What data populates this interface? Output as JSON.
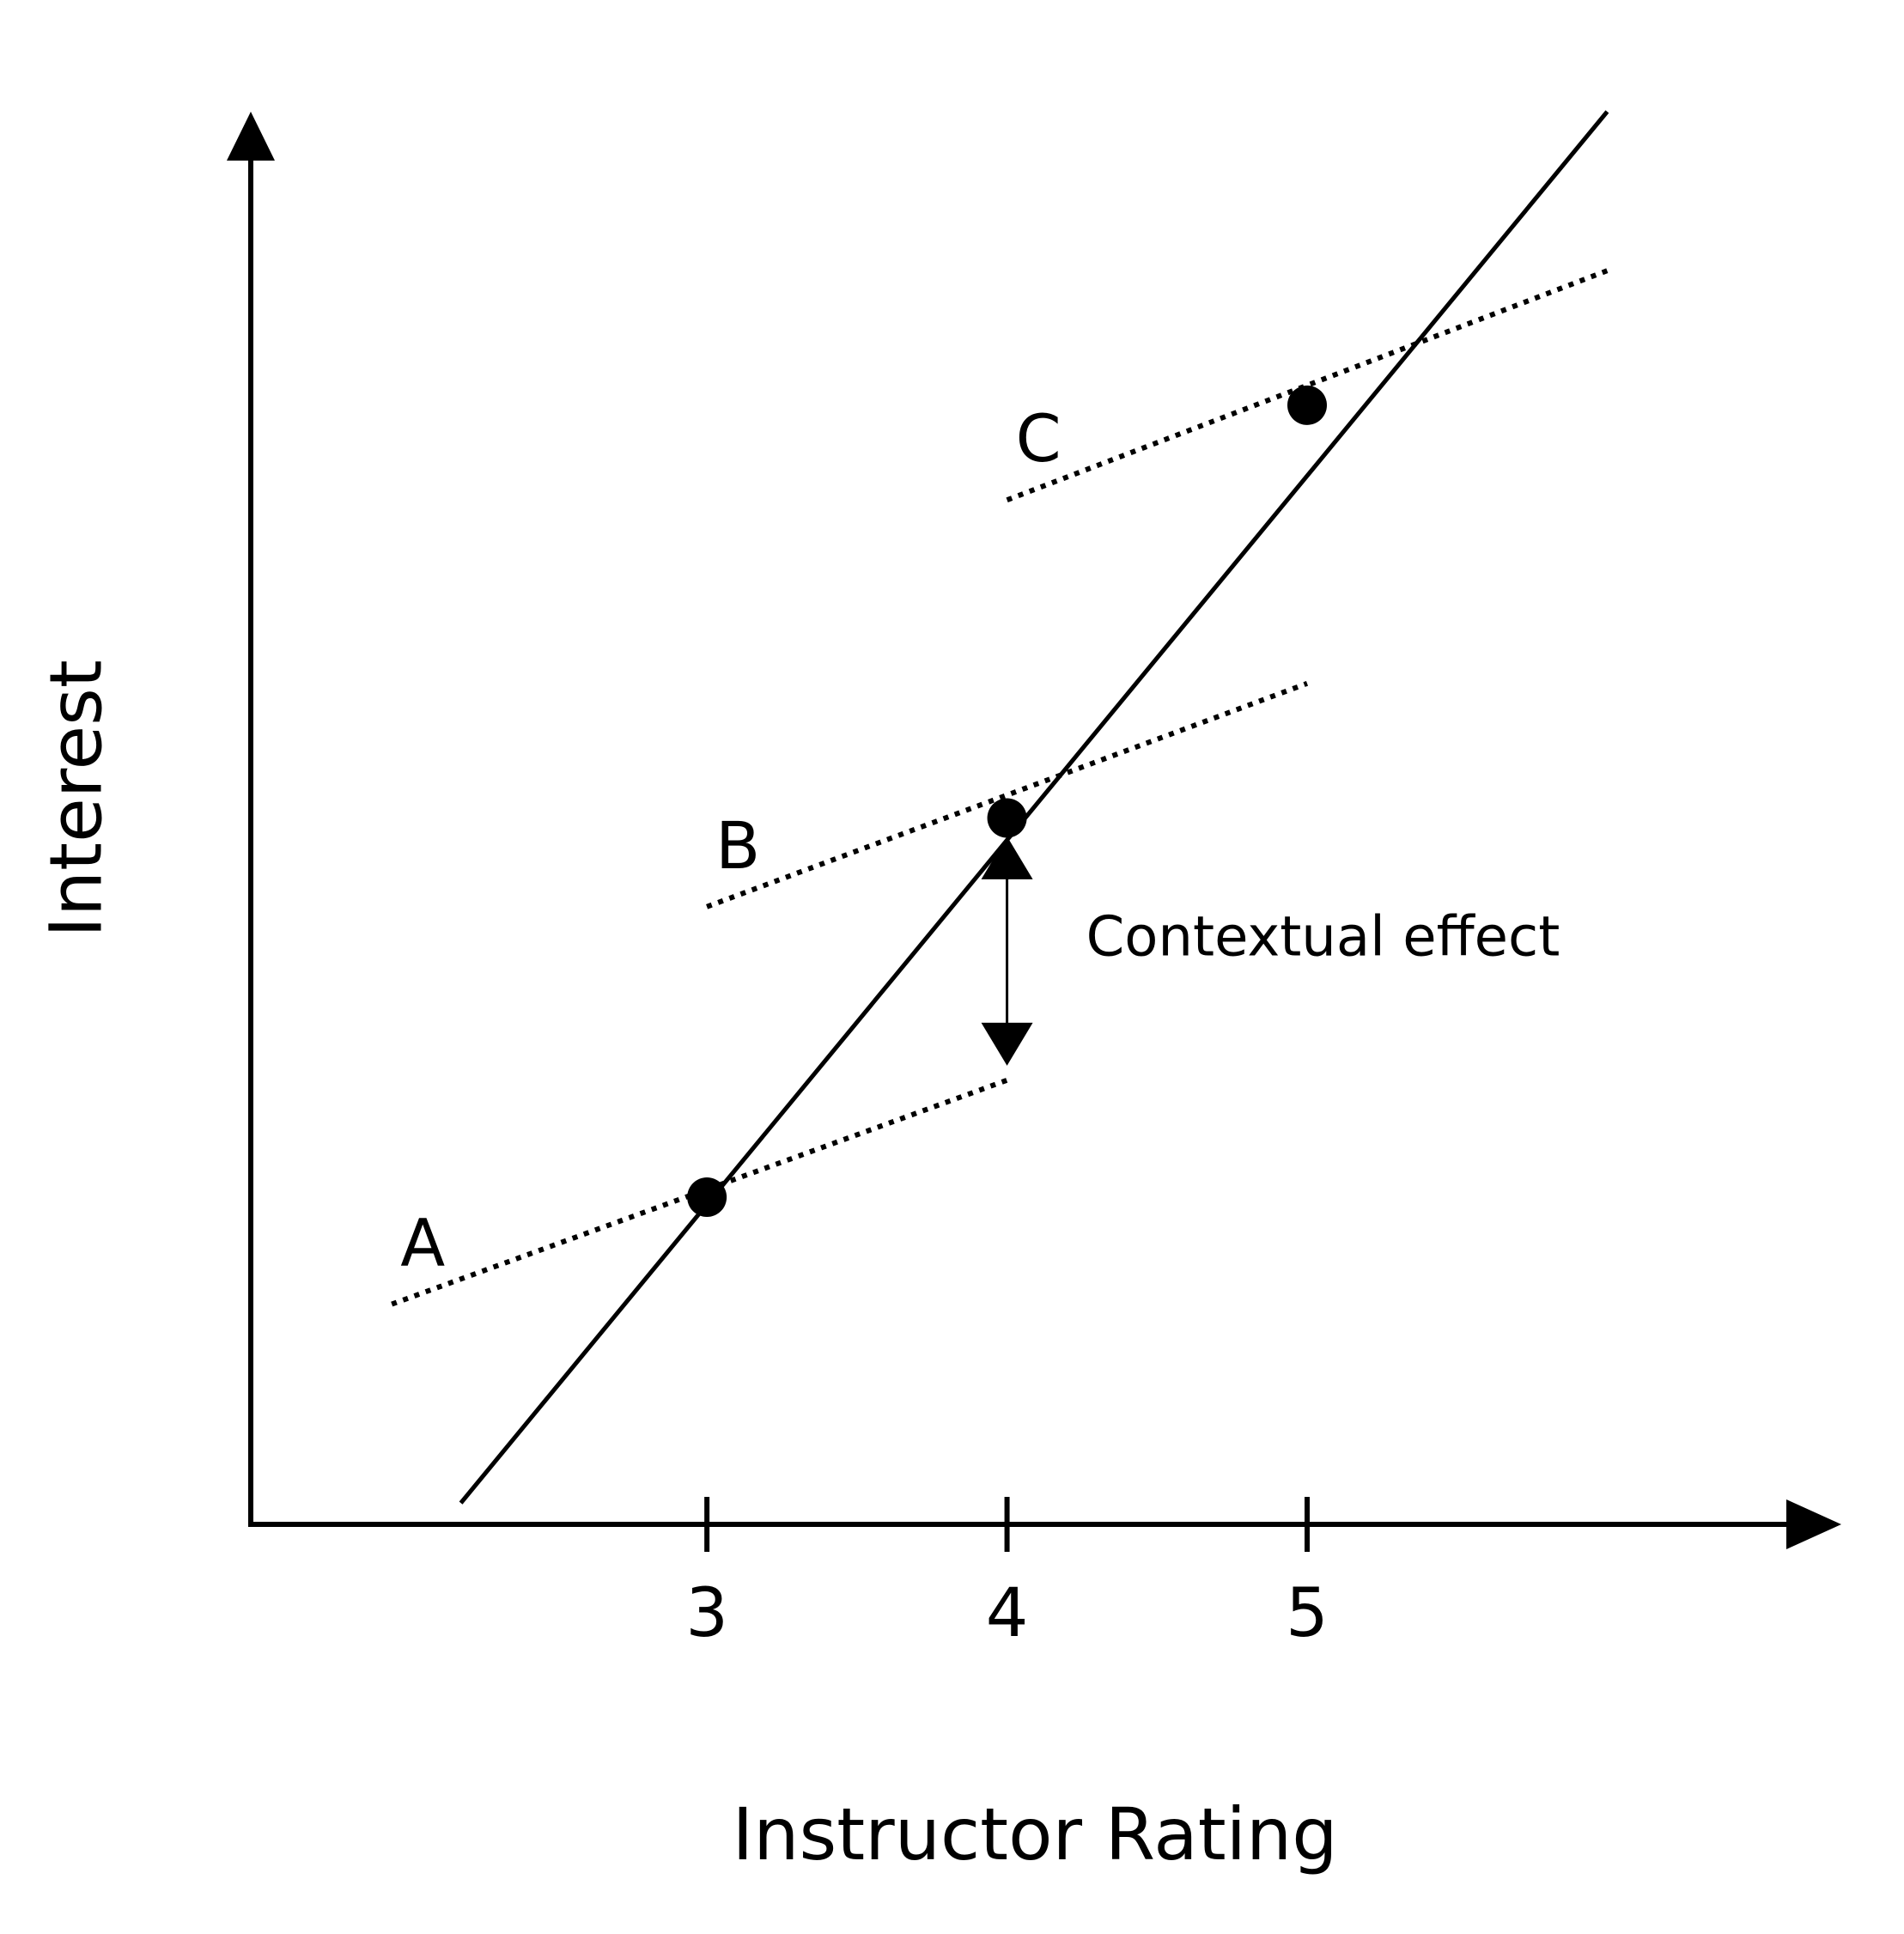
{
  "chart_data": {
    "type": "line",
    "title": "",
    "xlabel": "Instructor Rating",
    "ylabel": "Interest",
    "x_ticks": [
      3,
      4,
      5
    ],
    "xlim": [
      1.48,
      6.78
    ],
    "ylim": [
      0,
      4.62
    ],
    "grid": false,
    "legend": "none",
    "series": [
      {
        "name": "",
        "style": "solid",
        "x": [
          2.18,
          6.0
        ],
        "y": [
          0.07,
          4.62
        ]
      },
      {
        "name": "A",
        "style": "dotted",
        "x": [
          1.95,
          4.02
        ],
        "y": [
          0.72,
          1.46
        ]
      },
      {
        "name": "B",
        "style": "dotted",
        "x": [
          3.0,
          5.0
        ],
        "y": [
          2.02,
          2.75
        ]
      },
      {
        "name": "C",
        "style": "dotted",
        "x": [
          4.0,
          6.0
        ],
        "y": [
          3.35,
          4.1
        ]
      }
    ],
    "points": [
      {
        "x": 3,
        "y": 1.07
      },
      {
        "x": 4,
        "y": 2.31
      },
      {
        "x": 5,
        "y": 3.66
      }
    ],
    "annotations": [
      {
        "text": "Contextual effect",
        "x": 4,
        "y_from": 1.5,
        "y_to": 2.25
      }
    ]
  },
  "colors": {
    "ink": "#000000",
    "background": "#ffffff"
  }
}
